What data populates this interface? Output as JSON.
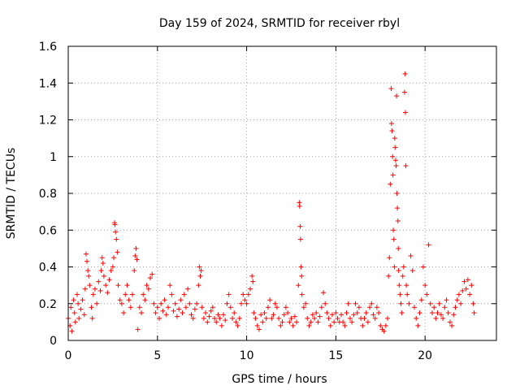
{
  "chart_data": {
    "type": "scatter",
    "title": "Day 159 of 2024, SRMTID for receiver rbyl",
    "xlabel": "GPS time / hours",
    "ylabel": "SRMTID / TECUs",
    "xlim": [
      0,
      24
    ],
    "ylim": [
      0,
      1.6
    ],
    "xticks": [
      0,
      5,
      10,
      15,
      20
    ],
    "xtick_labels": [
      "0",
      "5",
      "10",
      "15",
      "20"
    ],
    "yticks": [
      0,
      0.2,
      0.4,
      0.6,
      0.8,
      1,
      1.2,
      1.4,
      1.6
    ],
    "ytick_labels": [
      "0",
      "0.2",
      "0.4",
      "0.6",
      "0.8",
      "1",
      "1.2",
      "1.4",
      "1.6"
    ],
    "grid": true,
    "marker": "+",
    "color": "#ff0000",
    "series": [
      {
        "name": "SRMTID",
        "points": [
          [
            0.0,
            0.12
          ],
          [
            0.1,
            0.08
          ],
          [
            0.15,
            0.18
          ],
          [
            0.2,
            0.05
          ],
          [
            0.3,
            0.22
          ],
          [
            0.35,
            0.15
          ],
          [
            0.4,
            0.1
          ],
          [
            0.5,
            0.25
          ],
          [
            0.55,
            0.2
          ],
          [
            0.6,
            0.12
          ],
          [
            0.7,
            0.17
          ],
          [
            0.8,
            0.22
          ],
          [
            0.9,
            0.14
          ],
          [
            0.95,
            0.28
          ],
          [
            1.0,
            0.47
          ],
          [
            1.05,
            0.43
          ],
          [
            1.1,
            0.38
          ],
          [
            1.15,
            0.35
          ],
          [
            1.2,
            0.3
          ],
          [
            1.3,
            0.18
          ],
          [
            1.35,
            0.12
          ],
          [
            1.4,
            0.25
          ],
          [
            1.5,
            0.28
          ],
          [
            1.6,
            0.2
          ],
          [
            1.7,
            0.32
          ],
          [
            1.8,
            0.27
          ],
          [
            1.85,
            0.38
          ],
          [
            1.9,
            0.45
          ],
          [
            1.95,
            0.42
          ],
          [
            2.0,
            0.35
          ],
          [
            2.1,
            0.3
          ],
          [
            2.2,
            0.26
          ],
          [
            2.3,
            0.33
          ],
          [
            2.4,
            0.38
          ],
          [
            2.5,
            0.4
          ],
          [
            2.55,
            0.45
          ],
          [
            2.6,
            0.64
          ],
          [
            2.62,
            0.63
          ],
          [
            2.65,
            0.59
          ],
          [
            2.7,
            0.55
          ],
          [
            2.75,
            0.48
          ],
          [
            2.8,
            0.3
          ],
          [
            2.9,
            0.22
          ],
          [
            3.0,
            0.2
          ],
          [
            3.1,
            0.15
          ],
          [
            3.2,
            0.25
          ],
          [
            3.3,
            0.3
          ],
          [
            3.4,
            0.22
          ],
          [
            3.5,
            0.18
          ],
          [
            3.6,
            0.25
          ],
          [
            3.7,
            0.38
          ],
          [
            3.75,
            0.46
          ],
          [
            3.8,
            0.5
          ],
          [
            3.85,
            0.44
          ],
          [
            3.9,
            0.06
          ],
          [
            4.0,
            0.18
          ],
          [
            4.1,
            0.15
          ],
          [
            4.2,
            0.25
          ],
          [
            4.3,
            0.22
          ],
          [
            4.4,
            0.3
          ],
          [
            4.5,
            0.28
          ],
          [
            4.6,
            0.34
          ],
          [
            4.7,
            0.36
          ],
          [
            4.8,
            0.2
          ],
          [
            4.9,
            0.15
          ],
          [
            5.0,
            0.18
          ],
          [
            5.1,
            0.12
          ],
          [
            5.2,
            0.2
          ],
          [
            5.3,
            0.16
          ],
          [
            5.4,
            0.22
          ],
          [
            5.5,
            0.14
          ],
          [
            5.6,
            0.18
          ],
          [
            5.7,
            0.3
          ],
          [
            5.8,
            0.25
          ],
          [
            5.9,
            0.16
          ],
          [
            6.0,
            0.2
          ],
          [
            6.1,
            0.13
          ],
          [
            6.2,
            0.17
          ],
          [
            6.3,
            0.22
          ],
          [
            6.4,
            0.15
          ],
          [
            6.5,
            0.25
          ],
          [
            6.6,
            0.18
          ],
          [
            6.7,
            0.28
          ],
          [
            6.8,
            0.2
          ],
          [
            6.9,
            0.14
          ],
          [
            7.0,
            0.12
          ],
          [
            7.1,
            0.17
          ],
          [
            7.2,
            0.2
          ],
          [
            7.3,
            0.3
          ],
          [
            7.35,
            0.4
          ],
          [
            7.4,
            0.35
          ],
          [
            7.45,
            0.38
          ],
          [
            7.5,
            0.18
          ],
          [
            7.6,
            0.12
          ],
          [
            7.7,
            0.15
          ],
          [
            7.8,
            0.1
          ],
          [
            7.9,
            0.13
          ],
          [
            8.0,
            0.16
          ],
          [
            8.1,
            0.18
          ],
          [
            8.2,
            0.12
          ],
          [
            8.3,
            0.1
          ],
          [
            8.4,
            0.14
          ],
          [
            8.5,
            0.12
          ],
          [
            8.6,
            0.08
          ],
          [
            8.7,
            0.14
          ],
          [
            8.8,
            0.11
          ],
          [
            8.9,
            0.2
          ],
          [
            9.0,
            0.25
          ],
          [
            9.1,
            0.18
          ],
          [
            9.2,
            0.12
          ],
          [
            9.3,
            0.15
          ],
          [
            9.4,
            0.1
          ],
          [
            9.5,
            0.08
          ],
          [
            9.6,
            0.12
          ],
          [
            9.7,
            0.2
          ],
          [
            9.8,
            0.25
          ],
          [
            9.9,
            0.22
          ],
          [
            10.0,
            0.2
          ],
          [
            10.1,
            0.25
          ],
          [
            10.2,
            0.28
          ],
          [
            10.3,
            0.35
          ],
          [
            10.35,
            0.32
          ],
          [
            10.4,
            0.15
          ],
          [
            10.5,
            0.12
          ],
          [
            10.6,
            0.08
          ],
          [
            10.7,
            0.06
          ],
          [
            10.8,
            0.14
          ],
          [
            10.9,
            0.1
          ],
          [
            11.0,
            0.15
          ],
          [
            11.1,
            0.12
          ],
          [
            11.2,
            0.18
          ],
          [
            11.3,
            0.22
          ],
          [
            11.4,
            0.12
          ],
          [
            11.5,
            0.14
          ],
          [
            11.6,
            0.2
          ],
          [
            11.7,
            0.18
          ],
          [
            11.8,
            0.12
          ],
          [
            11.9,
            0.08
          ],
          [
            12.0,
            0.1
          ],
          [
            12.1,
            0.14
          ],
          [
            12.2,
            0.18
          ],
          [
            12.3,
            0.15
          ],
          [
            12.4,
            0.1
          ],
          [
            12.5,
            0.12
          ],
          [
            12.6,
            0.08
          ],
          [
            12.7,
            0.13
          ],
          [
            12.8,
            0.1
          ],
          [
            12.9,
            0.3
          ],
          [
            12.95,
            0.75
          ],
          [
            12.97,
            0.73
          ],
          [
            13.0,
            0.62
          ],
          [
            13.02,
            0.55
          ],
          [
            13.05,
            0.4
          ],
          [
            13.08,
            0.35
          ],
          [
            13.1,
            0.25
          ],
          [
            13.2,
            0.18
          ],
          [
            13.3,
            0.2
          ],
          [
            13.4,
            0.12
          ],
          [
            13.5,
            0.08
          ],
          [
            13.6,
            0.1
          ],
          [
            13.7,
            0.14
          ],
          [
            13.8,
            0.12
          ],
          [
            13.9,
            0.15
          ],
          [
            14.0,
            0.1
          ],
          [
            14.1,
            0.13
          ],
          [
            14.2,
            0.18
          ],
          [
            14.3,
            0.26
          ],
          [
            14.4,
            0.2
          ],
          [
            14.5,
            0.15
          ],
          [
            14.6,
            0.12
          ],
          [
            14.7,
            0.08
          ],
          [
            14.8,
            0.14
          ],
          [
            14.9,
            0.1
          ],
          [
            15.0,
            0.15
          ],
          [
            15.1,
            0.12
          ],
          [
            15.2,
            0.1
          ],
          [
            15.3,
            0.14
          ],
          [
            15.4,
            0.1
          ],
          [
            15.5,
            0.08
          ],
          [
            15.6,
            0.15
          ],
          [
            15.7,
            0.2
          ],
          [
            15.8,
            0.12
          ],
          [
            15.9,
            0.1
          ],
          [
            16.0,
            0.14
          ],
          [
            16.1,
            0.2
          ],
          [
            16.2,
            0.15
          ],
          [
            16.3,
            0.18
          ],
          [
            16.4,
            0.12
          ],
          [
            16.5,
            0.08
          ],
          [
            16.6,
            0.12
          ],
          [
            16.7,
            0.15
          ],
          [
            16.8,
            0.1
          ],
          [
            16.9,
            0.18
          ],
          [
            17.0,
            0.2
          ],
          [
            17.1,
            0.14
          ],
          [
            17.2,
            0.12
          ],
          [
            17.3,
            0.18
          ],
          [
            17.4,
            0.15
          ],
          [
            17.5,
            0.08
          ],
          [
            17.6,
            0.06
          ],
          [
            17.7,
            0.05
          ],
          [
            17.8,
            0.08
          ],
          [
            17.9,
            0.12
          ],
          [
            17.95,
            0.35
          ],
          [
            18.0,
            0.45
          ],
          [
            18.05,
            0.85
          ],
          [
            18.1,
            1.37
          ],
          [
            18.12,
            1.18
          ],
          [
            18.15,
            1.14
          ],
          [
            18.18,
            1.0
          ],
          [
            18.2,
            0.9
          ],
          [
            18.22,
            0.6
          ],
          [
            18.25,
            0.55
          ],
          [
            18.28,
            0.4
          ],
          [
            18.3,
            1.1
          ],
          [
            18.32,
            1.05
          ],
          [
            18.35,
            0.98
          ],
          [
            18.38,
            0.95
          ],
          [
            18.4,
            1.33
          ],
          [
            18.42,
            0.8
          ],
          [
            18.45,
            0.72
          ],
          [
            18.48,
            0.65
          ],
          [
            18.5,
            0.5
          ],
          [
            18.52,
            0.38
          ],
          [
            18.55,
            0.3
          ],
          [
            18.6,
            0.25
          ],
          [
            18.65,
            0.2
          ],
          [
            18.7,
            0.15
          ],
          [
            18.75,
            0.35
          ],
          [
            18.8,
            0.4
          ],
          [
            18.85,
            1.35
          ],
          [
            18.88,
            1.45
          ],
          [
            18.9,
            1.24
          ],
          [
            18.92,
            0.95
          ],
          [
            18.95,
            0.3
          ],
          [
            19.0,
            0.25
          ],
          [
            19.1,
            0.2
          ],
          [
            19.2,
            0.46
          ],
          [
            19.3,
            0.38
          ],
          [
            19.4,
            0.18
          ],
          [
            19.5,
            0.12
          ],
          [
            19.6,
            0.08
          ],
          [
            19.7,
            0.15
          ],
          [
            19.8,
            0.22
          ],
          [
            19.9,
            0.4
          ],
          [
            20.0,
            0.3
          ],
          [
            20.1,
            0.25
          ],
          [
            20.2,
            0.52
          ],
          [
            20.3,
            0.2
          ],
          [
            20.4,
            0.15
          ],
          [
            20.5,
            0.18
          ],
          [
            20.6,
            0.12
          ],
          [
            20.7,
            0.15
          ],
          [
            20.8,
            0.2
          ],
          [
            20.9,
            0.14
          ],
          [
            21.0,
            0.12
          ],
          [
            21.1,
            0.18
          ],
          [
            21.2,
            0.22
          ],
          [
            21.3,
            0.15
          ],
          [
            21.4,
            0.1
          ],
          [
            21.5,
            0.08
          ],
          [
            21.6,
            0.14
          ],
          [
            21.7,
            0.18
          ],
          [
            21.8,
            0.22
          ],
          [
            21.9,
            0.25
          ],
          [
            22.0,
            0.2
          ],
          [
            22.1,
            0.27
          ],
          [
            22.2,
            0.32
          ],
          [
            22.3,
            0.28
          ],
          [
            22.4,
            0.33
          ],
          [
            22.5,
            0.25
          ],
          [
            22.6,
            0.3
          ],
          [
            22.7,
            0.2
          ],
          [
            22.75,
            0.15
          ]
        ]
      }
    ]
  }
}
